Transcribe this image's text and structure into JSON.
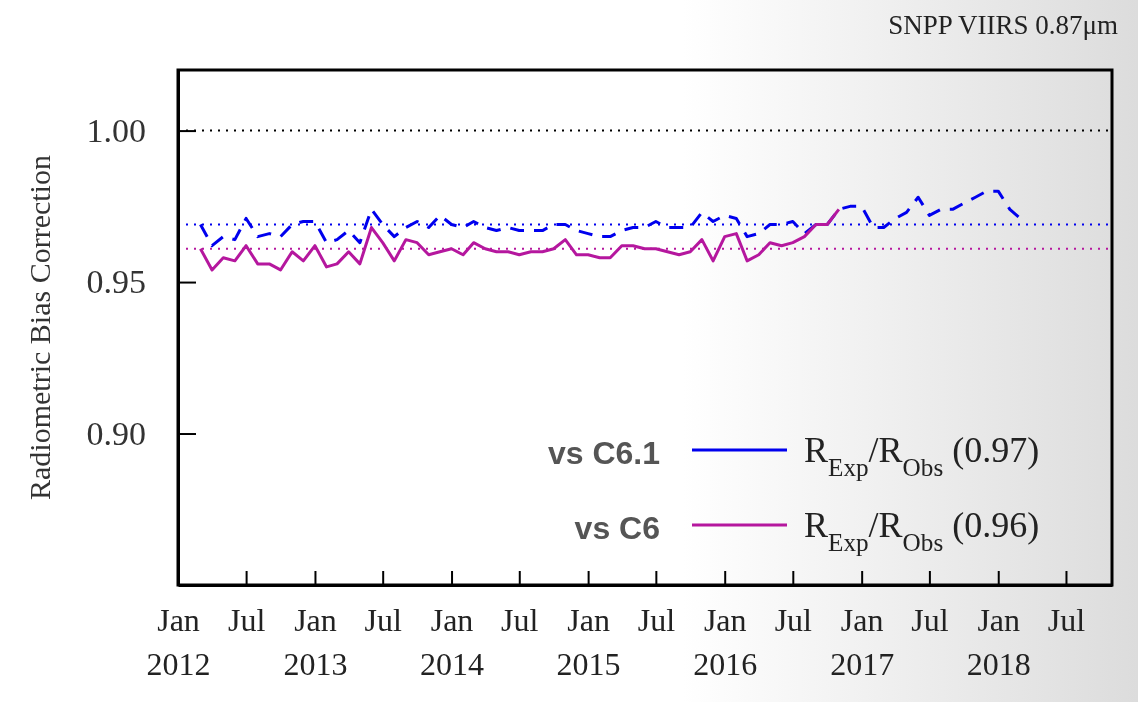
{
  "chart_data": {
    "type": "line",
    "title": "SNPP VIIRS 0.87μm",
    "ylabel": "Radiometric Bias Correction",
    "x": [
      "2012-03",
      "2012-04",
      "2012-05",
      "2012-06",
      "2012-07",
      "2012-08",
      "2012-09",
      "2012-10",
      "2012-11",
      "2012-12",
      "2013-01",
      "2013-02",
      "2013-03",
      "2013-04",
      "2013-05",
      "2013-06",
      "2013-07",
      "2013-08",
      "2013-09",
      "2013-10",
      "2013-11",
      "2013-12",
      "2014-01",
      "2014-02",
      "2014-03",
      "2014-04",
      "2014-05",
      "2014-06",
      "2014-07",
      "2014-08",
      "2014-09",
      "2014-10",
      "2014-11",
      "2014-12",
      "2015-01",
      "2015-02",
      "2015-03",
      "2015-04",
      "2015-05",
      "2015-06",
      "2015-07",
      "2015-08",
      "2015-09",
      "2015-10",
      "2015-11",
      "2015-12",
      "2016-01",
      "2016-02",
      "2016-03",
      "2016-04",
      "2016-05",
      "2016-06",
      "2016-07",
      "2016-08",
      "2016-09",
      "2016-10",
      "2016-11",
      "2016-12",
      "2017-01",
      "2017-02",
      "2017-03",
      "2017-04",
      "2017-05",
      "2017-06",
      "2017-07",
      "2017-08",
      "2017-09",
      "2017-10",
      "2017-11",
      "2017-12",
      "2018-01",
      "2018-02",
      "2018-03"
    ],
    "series": [
      {
        "name": "R$_{Exp}$/R$_{Obs}$ (0.97)",
        "color": "#0000ee",
        "line_style": "dashed",
        "values": [
          0.969,
          0.962,
          0.965,
          0.964,
          0.971,
          0.965,
          0.966,
          0.965,
          0.969,
          0.97,
          0.97,
          0.963,
          0.964,
          0.967,
          0.963,
          0.974,
          0.969,
          0.965,
          0.968,
          0.97,
          0.968,
          0.972,
          0.969,
          0.968,
          0.97,
          0.968,
          0.967,
          0.968,
          0.967,
          0.967,
          0.967,
          0.969,
          0.969,
          0.967,
          0.966,
          0.965,
          0.965,
          0.967,
          0.968,
          0.968,
          0.97,
          0.968,
          0.968,
          0.968,
          0.973,
          0.97,
          0.972,
          0.971,
          0.965,
          0.966,
          0.969,
          0.969,
          0.97,
          0.966,
          0.969,
          0.969,
          0.974,
          0.975,
          0.975,
          0.968,
          0.968,
          0.971,
          0.973,
          0.978,
          0.972,
          0.974,
          0.974,
          0.976,
          0.978,
          0.98,
          0.98,
          0.974,
          0.971
        ]
      },
      {
        "name": "R$_{Exp}$/R$_{Obs}$ (0.96)",
        "color": "#b5179e",
        "line_style": "solid",
        "values": [
          0.961,
          0.954,
          0.958,
          0.957,
          0.962,
          0.956,
          0.956,
          0.954,
          0.96,
          0.957,
          0.962,
          0.955,
          0.956,
          0.96,
          0.956,
          0.968,
          0.963,
          0.957,
          0.964,
          0.963,
          0.959,
          0.96,
          0.961,
          0.959,
          0.963,
          0.961,
          0.96,
          0.96,
          0.959,
          0.96,
          0.96,
          0.961,
          0.964,
          0.959,
          0.959,
          0.958,
          0.958,
          0.962,
          0.962,
          0.961,
          0.961,
          0.96,
          0.959,
          0.96,
          0.964,
          0.957,
          0.965,
          0.966,
          0.957,
          0.959,
          0.963,
          0.962,
          0.963,
          0.965,
          0.969,
          0.969,
          0.974,
          null,
          null,
          null,
          null,
          null,
          null,
          null,
          null,
          null,
          null,
          null,
          null,
          null,
          null,
          null,
          null
        ]
      }
    ],
    "xlim": [
      "2012-01",
      "2018-11"
    ],
    "xticks": [
      {
        "value": "2012-01",
        "label": "Jan 2012"
      },
      {
        "value": "2012-07",
        "label": "Jul"
      },
      {
        "value": "2013-01",
        "label": "Jan 2013"
      },
      {
        "value": "2013-07",
        "label": "Jul"
      },
      {
        "value": "2014-01",
        "label": "Jan 2014"
      },
      {
        "value": "2014-07",
        "label": "Jul"
      },
      {
        "value": "2015-01",
        "label": "Jan 2015"
      },
      {
        "value": "2015-07",
        "label": "Jul"
      },
      {
        "value": "2016-01",
        "label": "Jan 2016"
      },
      {
        "value": "2016-07",
        "label": "Jul"
      },
      {
        "value": "2017-01",
        "label": "Jan 2017"
      },
      {
        "value": "2017-07",
        "label": "Jul"
      },
      {
        "value": "2018-01",
        "label": "Jan 2018"
      },
      {
        "value": "2018-07",
        "label": "Jul"
      }
    ],
    "ylim": [
      0.85,
      1.02
    ],
    "yticks": [
      {
        "value": 0.9,
        "label": "0.90"
      },
      {
        "value": 0.95,
        "label": "0.95"
      },
      {
        "value": 1.0,
        "label": "1.00"
      }
    ],
    "ref_lines": [
      {
        "axis": "y",
        "value": 1.0,
        "color": "#000000",
        "line_style": "dotted"
      },
      {
        "axis": "y",
        "value": 0.969,
        "color": "#0000ee",
        "line_style": "dotted"
      },
      {
        "axis": "y",
        "value": 0.961,
        "color": "#b5179e",
        "line_style": "dotted"
      }
    ],
    "annotations": [
      "vs C6.1",
      "vs C6"
    ],
    "legend": "bottom right",
    "grid": false
  }
}
